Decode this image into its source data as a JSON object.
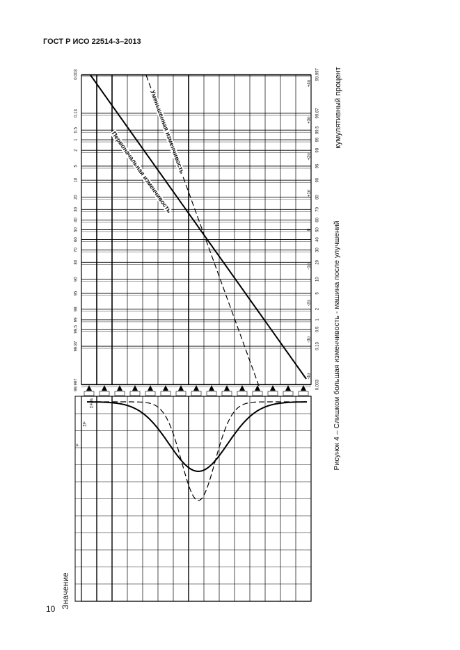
{
  "header": {
    "title": "ГОСТ Р ИСО 22514-3–2013"
  },
  "page_number": "10",
  "chart": {
    "value_label": "Значение",
    "cumulative_label": "кумулятивный процент",
    "left_scale": [
      "0.003",
      "0.13",
      "0.5",
      "1",
      "2",
      "5",
      "10",
      "20",
      "30",
      "40",
      "50",
      "60",
      "70",
      "80",
      "90",
      "95",
      "98",
      "99",
      "99.5",
      "99.87",
      "99.997"
    ],
    "right_scale": [
      "99.997",
      "99.87",
      "99.5",
      "99",
      "98",
      "95",
      "90",
      "80",
      "70",
      "60",
      "50",
      "40",
      "30",
      "20",
      "10",
      "5",
      "2",
      "1",
      "0.5",
      "0.13",
      "0.003"
    ],
    "sigma_scale": [
      "+4σ",
      "+3σ",
      "+2σ",
      "+1σ",
      "0",
      "-1σ",
      "-2σ",
      "-3σ",
      "-4σ"
    ],
    "table_headers": [
      "F",
      "ΣF",
      "ΣF/%"
    ],
    "curve_labels": [
      "Первоначальная изменчивость",
      "Уменьшенная изменчивость"
    ]
  },
  "caption": "Рисунок 4 – Слишком большая изменчивость - машина после улучшений"
}
